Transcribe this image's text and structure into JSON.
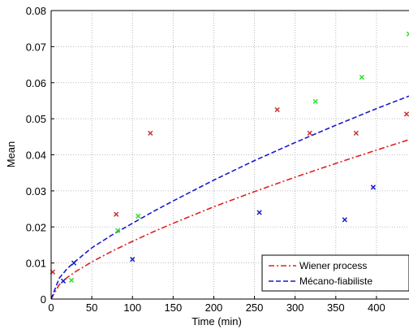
{
  "chart_data": {
    "type": "scatter",
    "xlabel": "Time (min)",
    "ylabel": "Mean",
    "xlim": [
      0,
      440
    ],
    "ylim": [
      0,
      0.08
    ],
    "xticks": [
      0,
      50,
      100,
      150,
      200,
      250,
      300,
      350,
      400
    ],
    "xtick_labels": [
      "0",
      "50",
      "100",
      "150",
      "200",
      "250",
      "300",
      "350",
      "400"
    ],
    "yticks": [
      0,
      0.01,
      0.02,
      0.03,
      0.04,
      0.05,
      0.06,
      0.07,
      0.08
    ],
    "ytick_labels": [
      "0",
      "0.01",
      "0.02",
      "0.03",
      "0.04",
      "0.05",
      "0.06",
      "0.07",
      "0.08"
    ],
    "grid": true,
    "legend_position": "bottom-right",
    "series": [
      {
        "name": "Wiener process",
        "kind": "line",
        "style": "dash-dot",
        "color": "#e02020",
        "x": [
          0,
          10,
          20,
          30,
          50,
          75,
          100,
          125,
          150,
          200,
          250,
          300,
          350,
          400,
          440
        ],
        "y": [
          0,
          0.004,
          0.006,
          0.0076,
          0.0103,
          0.0133,
          0.016,
          0.0186,
          0.021,
          0.0256,
          0.0298,
          0.0338,
          0.0376,
          0.0413,
          0.0442
        ]
      },
      {
        "name": "Mécano-fiabiliste",
        "kind": "line",
        "style": "dashed",
        "color": "#1a1acc",
        "x": [
          0,
          10,
          20,
          30,
          50,
          75,
          100,
          125,
          150,
          200,
          250,
          300,
          350,
          400,
          440
        ],
        "y": [
          0,
          0.0058,
          0.0085,
          0.0105,
          0.0142,
          0.0178,
          0.021,
          0.0242,
          0.0272,
          0.033,
          0.0384,
          0.0434,
          0.0482,
          0.0528,
          0.0563
        ]
      },
      {
        "kind": "markers",
        "marker": "x",
        "color": "#c83232",
        "x": [
          2,
          80,
          122,
          278,
          318,
          375,
          437
        ],
        "y": [
          0.0075,
          0.0235,
          0.046,
          0.0525,
          0.046,
          0.046,
          0.0513
        ]
      },
      {
        "kind": "markers",
        "marker": "x",
        "color": "#33dd33",
        "x": [
          25,
          82,
          107,
          325,
          382,
          440
        ],
        "y": [
          0.0052,
          0.019,
          0.023,
          0.0548,
          0.0615,
          0.0735
        ]
      },
      {
        "kind": "markers",
        "marker": "x",
        "color": "#1a1acc",
        "x": [
          15,
          28,
          100,
          256,
          361,
          396
        ],
        "y": [
          0.005,
          0.01,
          0.011,
          0.024,
          0.022,
          0.031
        ]
      }
    ]
  }
}
